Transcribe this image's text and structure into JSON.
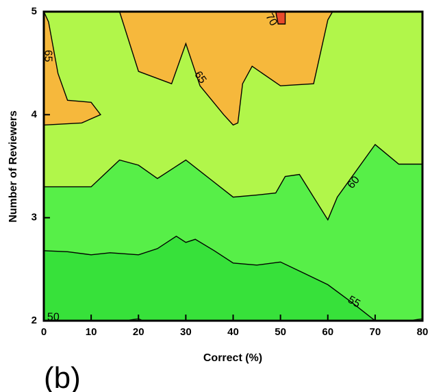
{
  "chart_data": {
    "type": "contour",
    "xlabel": "Correct (%)",
    "ylabel": "Number of Reviewers",
    "xlim": [
      0,
      80
    ],
    "ylim": [
      2,
      5
    ],
    "x_ticks": [
      0,
      10,
      20,
      30,
      40,
      50,
      60,
      70,
      80
    ],
    "y_ticks": [
      2,
      3,
      4,
      5
    ],
    "grid": false,
    "panel_label": "(b)",
    "levels": [
      {
        "level": 50,
        "color": "#37e13a"
      },
      {
        "level": 55,
        "color": "#57ef48"
      },
      {
        "level": 60,
        "color": "#b1f64a"
      },
      {
        "level": 65,
        "color": "#f6b83c"
      },
      {
        "level": 70,
        "color": "#e84b2b"
      }
    ],
    "contours": [
      {
        "level": 55,
        "label": "55",
        "points": [
          [
            0,
            2.68
          ],
          [
            5,
            2.67
          ],
          [
            10,
            2.64
          ],
          [
            14,
            2.66
          ],
          [
            20,
            2.64
          ],
          [
            24,
            2.7
          ],
          [
            28,
            2.82
          ],
          [
            30,
            2.76
          ],
          [
            32,
            2.79
          ],
          [
            36,
            2.68
          ],
          [
            40,
            2.56
          ],
          [
            45,
            2.54
          ],
          [
            50,
            2.57
          ],
          [
            55,
            2.46
          ],
          [
            60,
            2.35
          ],
          [
            65,
            2.18
          ],
          [
            70,
            2.0
          ]
        ]
      },
      {
        "level": 60,
        "label": "60",
        "points": [
          [
            0,
            3.3
          ],
          [
            10,
            3.3
          ],
          [
            16,
            3.56
          ],
          [
            20,
            3.51
          ],
          [
            24,
            3.38
          ],
          [
            30,
            3.56
          ],
          [
            35,
            3.38
          ],
          [
            40,
            3.2
          ],
          [
            45,
            3.22
          ],
          [
            49,
            3.24
          ],
          [
            51,
            3.4
          ],
          [
            54,
            3.42
          ],
          [
            57,
            3.2
          ],
          [
            60,
            2.98
          ],
          [
            62,
            3.2
          ],
          [
            70,
            3.71
          ],
          [
            75,
            3.52
          ],
          [
            80,
            3.52
          ]
        ]
      },
      {
        "level": 65,
        "label": "65",
        "points": [
          [
            16,
            5.0
          ],
          [
            20,
            4.42
          ],
          [
            27,
            4.3
          ],
          [
            30,
            4.69
          ],
          [
            33,
            4.28
          ],
          [
            38,
            4.0
          ],
          [
            40,
            3.9
          ],
          [
            41,
            3.92
          ],
          [
            42,
            4.3
          ],
          [
            44,
            4.47
          ],
          [
            50,
            4.28
          ],
          [
            57,
            4.3
          ],
          [
            60,
            4.92
          ],
          [
            61,
            5.0
          ]
        ]
      },
      {
        "level": 65,
        "label": "65",
        "points": [
          [
            0,
            3.9
          ],
          [
            8,
            3.92
          ],
          [
            12,
            4.0
          ],
          [
            10,
            4.12
          ],
          [
            5,
            4.14
          ],
          [
            3,
            4.4
          ],
          [
            1,
            4.9
          ],
          [
            0,
            5.0
          ]
        ]
      },
      {
        "level": 70,
        "label": "70",
        "points": [
          [
            49,
            5.0
          ],
          [
            49.5,
            4.88
          ],
          [
            51,
            4.88
          ],
          [
            51,
            5.0
          ]
        ]
      }
    ]
  }
}
